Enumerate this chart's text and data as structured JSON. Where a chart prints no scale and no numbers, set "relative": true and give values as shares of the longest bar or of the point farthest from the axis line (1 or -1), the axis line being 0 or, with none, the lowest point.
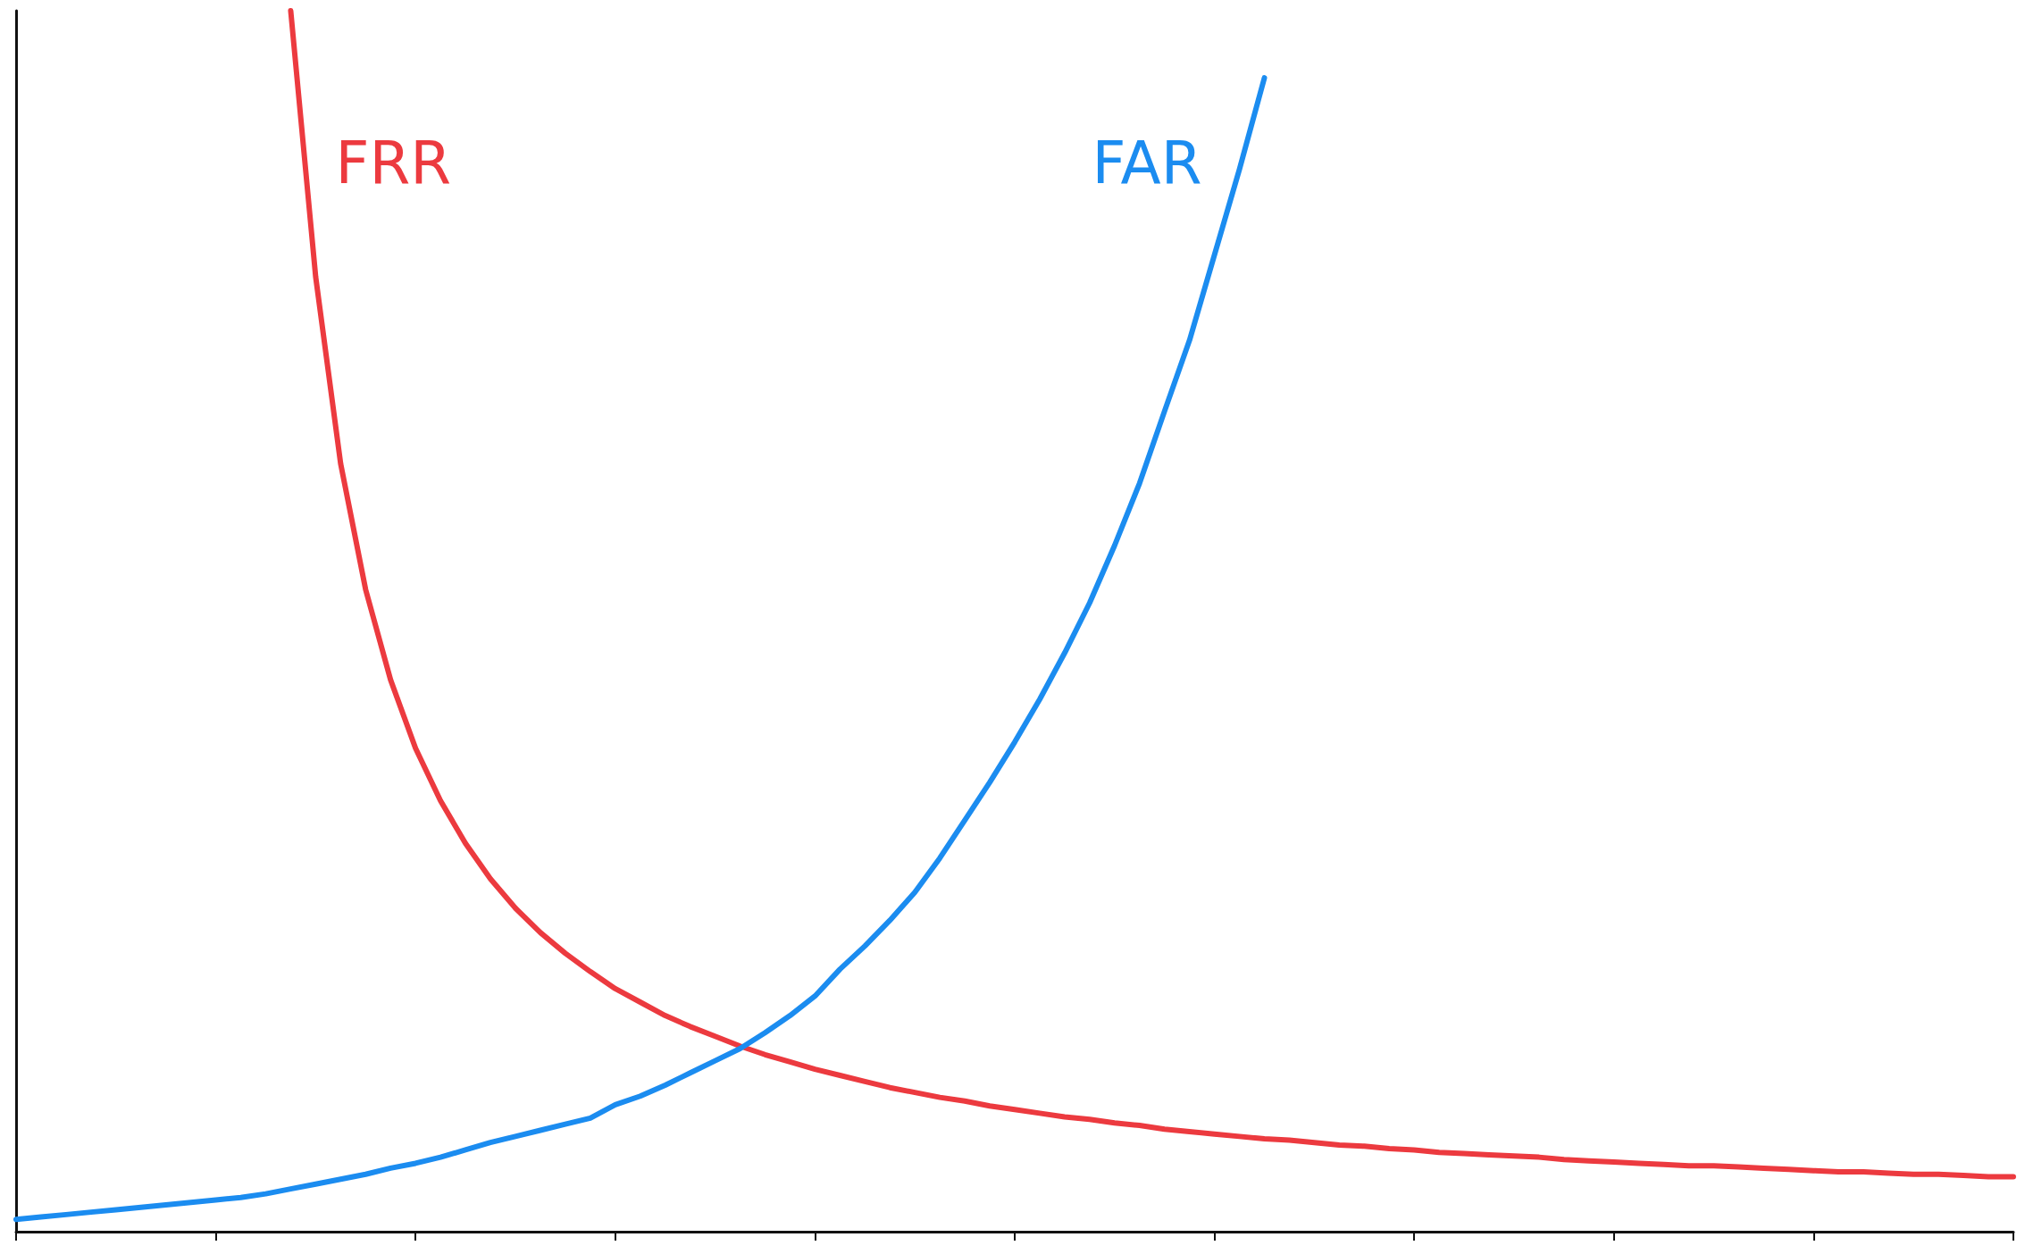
{
  "chart_data": {
    "type": "line",
    "relative": true,
    "marker": "none",
    "line_style": "solid",
    "categories": [
      null,
      null,
      null,
      null,
      null,
      null,
      null,
      null,
      null,
      null,
      null,
      null,
      null,
      null,
      null,
      null,
      null,
      null,
      null,
      null,
      null,
      null,
      null,
      null,
      null,
      null,
      null,
      null,
      null,
      null,
      null,
      null,
      null,
      null,
      null,
      null,
      null,
      null,
      null,
      null,
      null,
      null,
      null,
      null,
      null,
      null,
      null,
      null,
      null,
      null,
      null,
      null,
      null,
      null,
      null,
      null,
      null,
      null,
      null,
      null,
      null,
      null,
      null,
      null,
      null,
      null,
      null,
      null,
      null,
      null,
      null,
      null,
      null,
      null,
      null,
      null,
      null,
      null,
      null,
      null,
      null
    ],
    "series": [
      {
        "name": "FRR",
        "color": "#ec3a3f",
        "values": [
          null,
          null,
          null,
          null,
          null,
          null,
          null,
          null,
          null,
          null,
          null,
          1.0,
          0.782,
          0.629,
          0.526,
          0.452,
          0.396,
          0.353,
          0.318,
          0.289,
          0.265,
          0.245,
          0.228,
          0.213,
          0.199,
          0.188,
          0.177,
          0.168,
          0.16,
          0.152,
          0.145,
          0.139,
          0.133,
          0.128,
          0.123,
          0.118,
          0.114,
          0.11,
          0.107,
          0.103,
          0.1,
          0.097,
          0.094,
          0.092,
          0.089,
          0.087,
          0.084,
          0.082,
          0.08,
          0.078,
          0.076,
          0.075,
          0.073,
          0.071,
          0.07,
          0.068,
          0.067,
          0.065,
          0.064,
          0.063,
          0.062,
          0.061,
          0.059,
          0.058,
          0.057,
          0.056,
          0.055,
          0.054,
          0.054,
          0.053,
          0.052,
          0.051,
          0.05,
          0.049,
          0.049,
          0.048,
          0.047,
          0.047,
          0.046,
          0.045,
          0.045
        ]
      },
      {
        "name": "FAR",
        "color": "#1b8cf0",
        "values": [
          0.01,
          0.012,
          0.014,
          0.016,
          0.018,
          0.02,
          0.022,
          0.024,
          0.026,
          0.028,
          0.031,
          0.035,
          0.039,
          0.043,
          0.047,
          0.052,
          0.056,
          0.061,
          0.067,
          0.073,
          0.078,
          0.083,
          0.088,
          0.093,
          0.104,
          0.111,
          0.12,
          0.13,
          0.14,
          0.15,
          0.163,
          0.177,
          0.193,
          0.215,
          0.234,
          0.255,
          0.278,
          0.306,
          0.337,
          0.368,
          0.401,
          0.436,
          0.474,
          0.515,
          0.562,
          0.613,
          0.672,
          0.73,
          0.8,
          0.87,
          0.945,
          null,
          null,
          null,
          null,
          null,
          null,
          null,
          null,
          null,
          null,
          null,
          null,
          null,
          null,
          null,
          null,
          null,
          null,
          null,
          null,
          null,
          null,
          null,
          null,
          null,
          null,
          null,
          null,
          null,
          null
        ]
      }
    ]
  }
}
